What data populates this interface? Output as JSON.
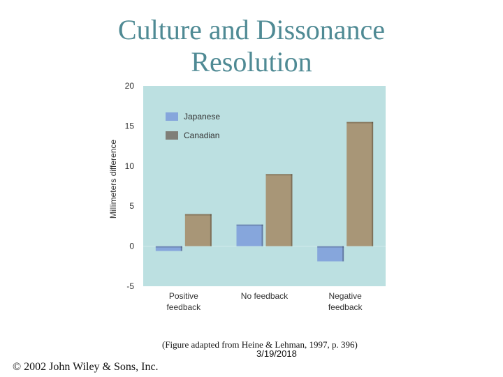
{
  "slide": {
    "title_line1": "Culture and Dissonance",
    "title_line2": "Resolution",
    "caption": "(Figure adapted from Heine & Lehman, 1997, p. 396)",
    "date": "3/19/2018",
    "copyright": "© 2002 John Wiley & Sons, Inc."
  },
  "chart_data": {
    "type": "bar",
    "categories": [
      "Positive\nfeedback",
      "No feedback",
      "Negative\nfeedback"
    ],
    "series": [
      {
        "name": "Japanese",
        "values": [
          -0.6,
          2.7,
          -1.9
        ],
        "color": "#86a6dc"
      },
      {
        "name": "Canadian",
        "values": [
          4.0,
          9.0,
          15.5
        ],
        "color": "#a89677"
      }
    ],
    "ylabel": "Millimeters difference",
    "yticks": [
      20,
      15,
      10,
      5,
      0,
      -5
    ],
    "ylim": [
      -5,
      20
    ],
    "legend_position": "top-left",
    "plot_background": "#bce0e1",
    "grid": false
  }
}
